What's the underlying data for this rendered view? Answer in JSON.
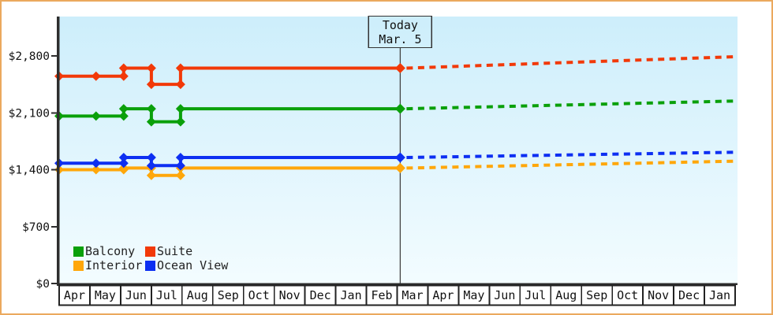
{
  "frame": {
    "border_color": "#eba95e"
  },
  "chart_data": {
    "type": "line",
    "title": "",
    "xlabel": "",
    "ylabel": "",
    "ylim": [
      0,
      3300
    ],
    "grid": false,
    "background": {
      "top": "#cdeefb",
      "bottom": "#f3fcff"
    },
    "axis_color": "#2e2e2e",
    "y_axis": {
      "ticks": [
        {
          "label": "$2,800",
          "value": 2800
        },
        {
          "label": "$2,100",
          "value": 2100
        },
        {
          "label": "$1,400",
          "value": 1400
        },
        {
          "label": "$700",
          "value": 700
        },
        {
          "label": "$0",
          "value": 0
        }
      ]
    },
    "x_axis": {
      "months": [
        "Apr",
        "May",
        "Jun",
        "Jul",
        "Aug",
        "Sep",
        "Oct",
        "Nov",
        "Dec",
        "Jan",
        "Feb",
        "Mar",
        "Apr",
        "May",
        "Jun",
        "Jul",
        "Aug",
        "Sep",
        "Oct",
        "Nov",
        "Dec",
        "Jan"
      ]
    },
    "today": {
      "title": "Today",
      "date": "Mar. 5",
      "month_index": 11.1,
      "line_color": "#444444",
      "box_border": "#333333"
    },
    "forecast_end_month_index": 22,
    "series": [
      {
        "name": "Interior",
        "color": "#ffa70a",
        "history": [
          [
            0,
            1400
          ],
          [
            1.2,
            1400
          ],
          [
            2.1,
            1400
          ],
          [
            2.1,
            1420
          ],
          [
            3.0,
            1420
          ],
          [
            3.0,
            1330
          ],
          [
            3.95,
            1330
          ],
          [
            3.95,
            1420
          ],
          [
            11.1,
            1420
          ]
        ],
        "forecast_end_value": 1505
      },
      {
        "name": "Ocean View",
        "color": "#0d2ff2",
        "history": [
          [
            0,
            1480
          ],
          [
            1.2,
            1480
          ],
          [
            2.1,
            1480
          ],
          [
            2.1,
            1550
          ],
          [
            3.0,
            1550
          ],
          [
            3.0,
            1450
          ],
          [
            3.95,
            1450
          ],
          [
            3.95,
            1550
          ],
          [
            11.1,
            1550
          ]
        ],
        "forecast_end_value": 1615
      },
      {
        "name": "Balcony",
        "color": "#0aa00a",
        "history": [
          [
            0,
            2060
          ],
          [
            1.2,
            2060
          ],
          [
            2.1,
            2060
          ],
          [
            2.1,
            2150
          ],
          [
            3.0,
            2150
          ],
          [
            3.0,
            1990
          ],
          [
            3.95,
            1990
          ],
          [
            3.95,
            2150
          ],
          [
            11.1,
            2150
          ]
        ],
        "forecast_end_value": 2245
      },
      {
        "name": "Suite",
        "color": "#f23908",
        "history": [
          [
            0,
            2550
          ],
          [
            1.2,
            2550
          ],
          [
            2.1,
            2550
          ],
          [
            2.1,
            2650
          ],
          [
            3.0,
            2650
          ],
          [
            3.0,
            2450
          ],
          [
            3.95,
            2450
          ],
          [
            3.95,
            2650
          ],
          [
            11.1,
            2650
          ]
        ],
        "forecast_end_value": 2790
      }
    ],
    "legend": {
      "rows": [
        [
          "Balcony",
          "Suite"
        ],
        [
          "Interior",
          "Ocean View"
        ]
      ]
    }
  }
}
